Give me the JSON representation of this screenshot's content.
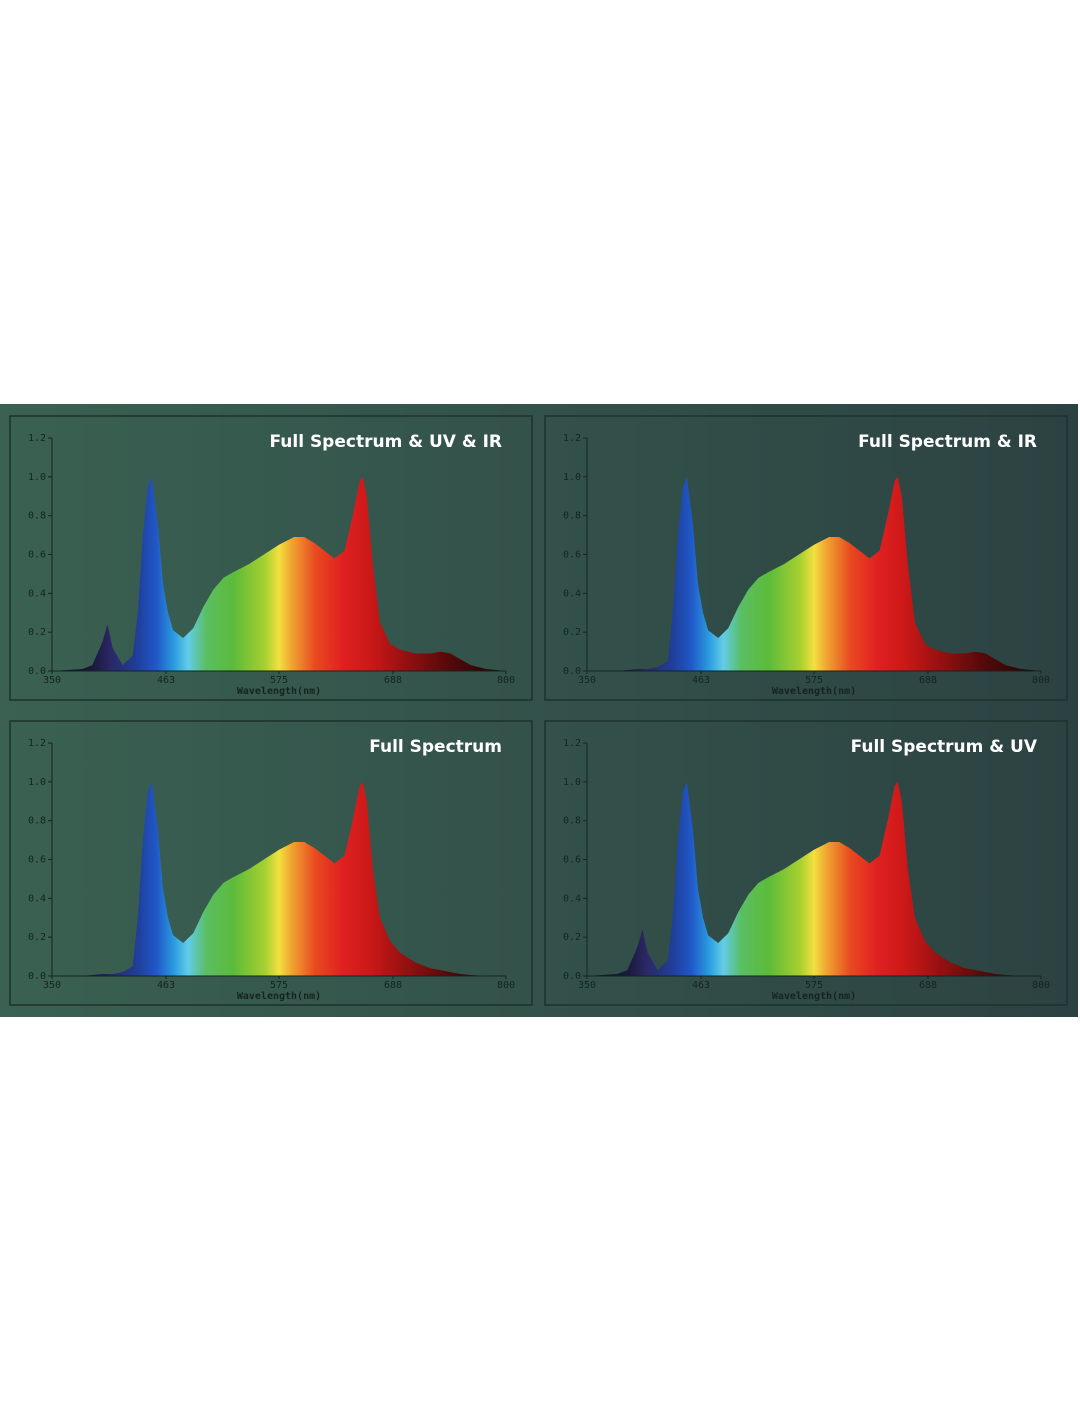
{
  "chart_data": [
    {
      "type": "area",
      "title": "Full Spectrum & UV & IR",
      "x_label": "Wavelength(nm)",
      "x": [
        350,
        380,
        390,
        400,
        405,
        410,
        420,
        430,
        435,
        440,
        445,
        449,
        455,
        460,
        465,
        470,
        480,
        490,
        500,
        510,
        520,
        530,
        545,
        560,
        575,
        590,
        600,
        610,
        620,
        630,
        640,
        648,
        655,
        658,
        662,
        668,
        675,
        685,
        695,
        710,
        725,
        735,
        745,
        755,
        765,
        780,
        800
      ],
      "values": [
        0,
        0.01,
        0.03,
        0.15,
        0.24,
        0.12,
        0.03,
        0.08,
        0.3,
        0.7,
        0.95,
        1.0,
        0.75,
        0.45,
        0.3,
        0.21,
        0.17,
        0.22,
        0.33,
        0.42,
        0.48,
        0.51,
        0.55,
        0.6,
        0.65,
        0.69,
        0.69,
        0.66,
        0.62,
        0.58,
        0.62,
        0.8,
        0.98,
        1.0,
        0.9,
        0.55,
        0.25,
        0.14,
        0.11,
        0.09,
        0.09,
        0.1,
        0.09,
        0.06,
        0.03,
        0.01,
        0
      ],
      "xlim": [
        350,
        800
      ],
      "xticks": [
        350,
        463,
        575,
        688,
        800
      ],
      "ylim": [
        0,
        1.2
      ],
      "yticks": [
        {
          "value": 0,
          "label": "0.0"
        },
        0.2,
        0.4,
        0.6,
        0.8,
        {
          "value": 1,
          "label": "1.0"
        },
        1.2
      ]
    },
    {
      "type": "area",
      "title": "Full Spectrum & IR",
      "x_label": "Wavelength(nm)",
      "x": [
        350,
        380,
        390,
        400,
        405,
        410,
        420,
        430,
        435,
        440,
        445,
        449,
        455,
        460,
        465,
        470,
        480,
        490,
        500,
        510,
        520,
        530,
        545,
        560,
        575,
        590,
        600,
        610,
        620,
        630,
        640,
        648,
        655,
        658,
        662,
        668,
        675,
        685,
        695,
        710,
        725,
        735,
        745,
        755,
        765,
        780,
        800
      ],
      "values": [
        0,
        0,
        0.005,
        0.01,
        0.01,
        0.01,
        0.02,
        0.05,
        0.3,
        0.7,
        0.95,
        1.0,
        0.75,
        0.45,
        0.3,
        0.21,
        0.17,
        0.22,
        0.33,
        0.42,
        0.48,
        0.51,
        0.55,
        0.6,
        0.65,
        0.69,
        0.69,
        0.66,
        0.62,
        0.58,
        0.62,
        0.8,
        0.98,
        1.0,
        0.9,
        0.55,
        0.25,
        0.14,
        0.11,
        0.09,
        0.09,
        0.1,
        0.09,
        0.06,
        0.03,
        0.01,
        0
      ],
      "xlim": [
        350,
        800
      ],
      "xticks": [
        350,
        463,
        575,
        688,
        800
      ],
      "ylim": [
        0,
        1.2
      ],
      "yticks": [
        {
          "value": 0,
          "label": "0.0"
        },
        0.2,
        0.4,
        0.6,
        0.8,
        {
          "value": 1,
          "label": "1.0"
        },
        1.2
      ]
    },
    {
      "type": "area",
      "title": "Full Spectrum",
      "x_label": "Wavelength(nm)",
      "x": [
        350,
        380,
        390,
        400,
        405,
        410,
        420,
        430,
        435,
        440,
        445,
        449,
        455,
        460,
        465,
        470,
        480,
        490,
        500,
        510,
        520,
        530,
        545,
        560,
        575,
        590,
        600,
        610,
        620,
        630,
        640,
        648,
        655,
        658,
        662,
        668,
        675,
        685,
        695,
        710,
        725,
        735,
        745,
        755,
        765,
        780,
        800
      ],
      "values": [
        0,
        0,
        0.005,
        0.01,
        0.01,
        0.01,
        0.02,
        0.05,
        0.3,
        0.7,
        0.95,
        1.0,
        0.75,
        0.45,
        0.3,
        0.21,
        0.17,
        0.22,
        0.33,
        0.42,
        0.48,
        0.51,
        0.55,
        0.6,
        0.65,
        0.69,
        0.69,
        0.66,
        0.62,
        0.58,
        0.62,
        0.8,
        0.98,
        1.0,
        0.9,
        0.55,
        0.3,
        0.18,
        0.12,
        0.07,
        0.04,
        0.03,
        0.02,
        0.01,
        0.005,
        0,
        0
      ],
      "xlim": [
        350,
        800
      ],
      "xticks": [
        350,
        463,
        575,
        688,
        800
      ],
      "ylim": [
        0,
        1.2
      ],
      "yticks": [
        {
          "value": 0,
          "label": "0.0"
        },
        0.2,
        0.4,
        0.6,
        0.8,
        {
          "value": 1,
          "label": "1.0"
        },
        1.2
      ]
    },
    {
      "type": "area",
      "title": "Full Spectrum & UV",
      "x_label": "Wavelength(nm)",
      "x": [
        350,
        380,
        390,
        400,
        405,
        410,
        420,
        430,
        435,
        440,
        445,
        449,
        455,
        460,
        465,
        470,
        480,
        490,
        500,
        510,
        520,
        530,
        545,
        560,
        575,
        590,
        600,
        610,
        620,
        630,
        640,
        648,
        655,
        658,
        662,
        668,
        675,
        685,
        695,
        710,
        725,
        735,
        745,
        755,
        765,
        780,
        800
      ],
      "values": [
        0,
        0.01,
        0.03,
        0.15,
        0.24,
        0.12,
        0.03,
        0.08,
        0.3,
        0.7,
        0.95,
        1.0,
        0.75,
        0.45,
        0.3,
        0.21,
        0.17,
        0.22,
        0.33,
        0.42,
        0.48,
        0.51,
        0.55,
        0.6,
        0.65,
        0.69,
        0.69,
        0.66,
        0.62,
        0.58,
        0.62,
        0.8,
        0.98,
        1.0,
        0.9,
        0.55,
        0.3,
        0.18,
        0.12,
        0.07,
        0.04,
        0.03,
        0.02,
        0.01,
        0.005,
        0,
        0
      ],
      "xlim": [
        350,
        800
      ],
      "xticks": [
        350,
        463,
        575,
        688,
        800
      ],
      "ylim": [
        0,
        1.2
      ],
      "yticks": [
        {
          "value": 0,
          "label": "0.0"
        },
        0.2,
        0.4,
        0.6,
        0.8,
        {
          "value": 1,
          "label": "1.0"
        },
        1.2
      ]
    }
  ]
}
